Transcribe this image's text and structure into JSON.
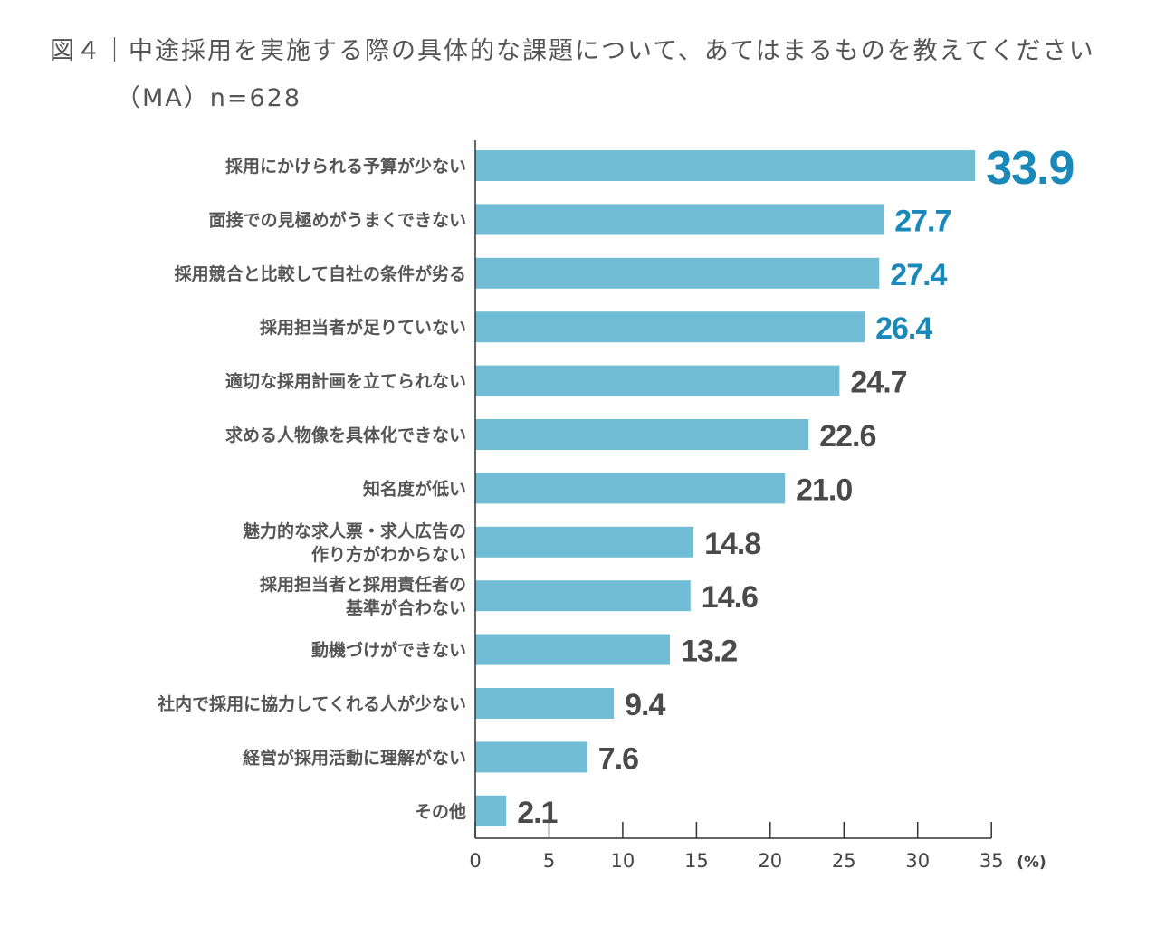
{
  "header": {
    "title": "図４｜中途採用を実施する際の具体的な課題について、あてはまるものを教えてください",
    "subtitle": "（MA）n=628"
  },
  "colors": {
    "bar": "#71bdd5",
    "highlight_value": "#1a88b9",
    "normal_value": "#4a4a4a",
    "axis": "#333333"
  },
  "chart_data": {
    "type": "bar",
    "orientation": "horizontal",
    "categories": [
      [
        "採用にかけられる予算が少ない"
      ],
      [
        "面接での見極めがうまくできない"
      ],
      [
        "採用競合と比較して自社の条件が劣る"
      ],
      [
        "採用担当者が足りていない"
      ],
      [
        "適切な採用計画を立てられない"
      ],
      [
        "求める人物像を具体化できない"
      ],
      [
        "知名度が低い"
      ],
      [
        "魅力的な求人票・求人広告の",
        "作り方がわからない"
      ],
      [
        "採用担当者と採用責任者の",
        "基準が合わない"
      ],
      [
        "動機づけができない"
      ],
      [
        "社内で採用に協力してくれる人が少ない"
      ],
      [
        "経営が採用活動に理解がない"
      ],
      [
        "その他"
      ]
    ],
    "values": [
      33.9,
      27.7,
      27.4,
      26.4,
      24.7,
      22.6,
      21.0,
      14.8,
      14.6,
      13.2,
      9.4,
      7.6,
      2.1
    ],
    "value_labels": [
      "33.9",
      "27.7",
      "27.4",
      "26.4",
      "24.7",
      "22.6",
      "21.0",
      "14.8",
      "14.6",
      "13.2",
      "9.4",
      "7.6",
      "2.1"
    ],
    "highlighted_count": 4,
    "xlim": [
      0,
      35
    ],
    "xticks": [
      "0",
      "5",
      "10",
      "15",
      "20",
      "25",
      "30",
      "35"
    ],
    "unit": "(%)",
    "grid": false
  }
}
